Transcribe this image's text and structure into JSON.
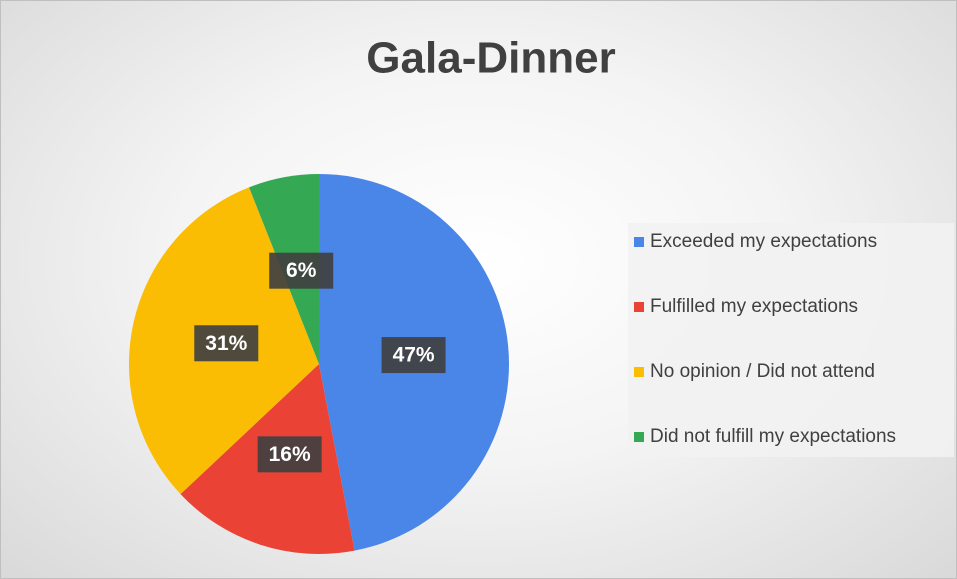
{
  "chart_data": {
    "type": "pie",
    "title": "Gala-Dinner",
    "categories": [
      "Exceeded my expectations",
      "Fulfilled my expectations",
      "No opinion / Did not attend",
      "Did not fulfill my expectations"
    ],
    "values": [
      47,
      16,
      31,
      6
    ],
    "value_labels": [
      "47%",
      "16%",
      "31%",
      "6%"
    ],
    "colors": [
      "#4a86e8",
      "#ea4335",
      "#fbbc04",
      "#34a853"
    ],
    "legend": "right"
  }
}
